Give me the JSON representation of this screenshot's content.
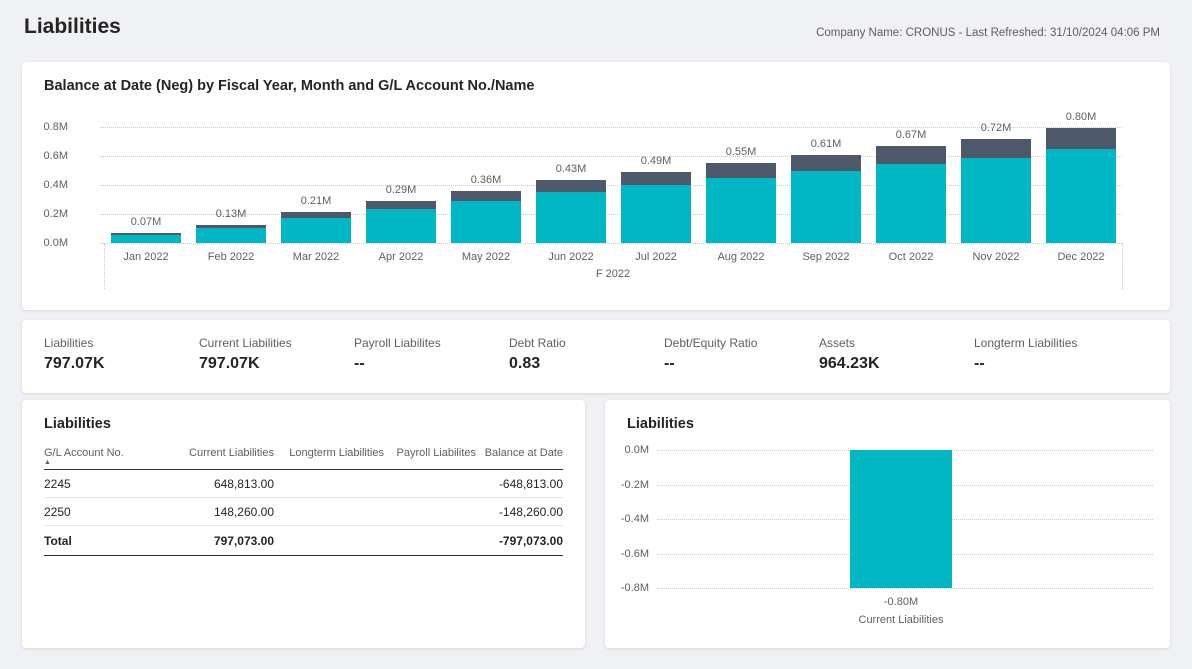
{
  "page": {
    "title": "Liabilities",
    "meta": "Company Name: CRONUS - Last Refreshed: 31/10/2024 04:06 PM"
  },
  "colors": {
    "teal": "#00B7C3",
    "slate": "#4E586B",
    "background": "#eff1f4",
    "grid": "#cccccc",
    "text_muted": "#605E5C",
    "text_dark": "#252423"
  },
  "chart_data": [
    {
      "type": "bar",
      "stacked": true,
      "title": "Balance at Date (Neg) by Fiscal Year, Month and G/L Account No./Name",
      "categories": [
        "Jan 2022",
        "Feb 2022",
        "Mar 2022",
        "Apr 2022",
        "May 2022",
        "Jun 2022",
        "Jul 2022",
        "Aug 2022",
        "Sep 2022",
        "Oct 2022",
        "Nov 2022",
        "Dec 2022"
      ],
      "series": [
        {
          "name": "2245",
          "color": "#00B7C3",
          "values": [
            0.057,
            0.106,
            0.171,
            0.236,
            0.293,
            0.35,
            0.399,
            0.448,
            0.497,
            0.545,
            0.586,
            0.649
          ]
        },
        {
          "name": "2250",
          "color": "#4E586B",
          "values": [
            0.013,
            0.024,
            0.039,
            0.054,
            0.067,
            0.08,
            0.091,
            0.102,
            0.113,
            0.125,
            0.134,
            0.148
          ]
        }
      ],
      "total_labels": [
        "0.07M",
        "0.13M",
        "0.21M",
        "0.29M",
        "0.36M",
        "0.43M",
        "0.49M",
        "0.55M",
        "0.61M",
        "0.67M",
        "0.72M",
        "0.80M"
      ],
      "y_ticks": [
        "0.8M",
        "0.6M",
        "0.4M",
        "0.2M",
        "0.0M"
      ],
      "ylim": [
        0,
        0.8
      ],
      "x_group_label": "F 2022",
      "grid": "dotted",
      "legend": "none"
    },
    {
      "type": "bar",
      "title": "Liabilities",
      "categories": [
        "Current Liabilities"
      ],
      "values": [
        -0.8
      ],
      "value_labels": [
        "-0.80M"
      ],
      "color": "#00B7C3",
      "y_ticks": [
        "0.0M",
        "-0.2M",
        "-0.4M",
        "-0.6M",
        "-0.8M"
      ],
      "ylim": [
        -0.8,
        0
      ],
      "grid": "dotted",
      "legend": "none"
    }
  ],
  "kpis": [
    {
      "label": "Liabilities",
      "value": "797.07K"
    },
    {
      "label": "Current Liabilities",
      "value": "797.07K"
    },
    {
      "label": "Payroll Liabilites",
      "value": "--"
    },
    {
      "label": "Debt Ratio",
      "value": "0.83"
    },
    {
      "label": "Debt/Equity Ratio",
      "value": "--"
    },
    {
      "label": "Assets",
      "value": "964.23K"
    },
    {
      "label": "Longterm Liabilities",
      "value": "--"
    }
  ],
  "table": {
    "title": "Liabilities",
    "columns": [
      "G/L Account No.",
      "Current Liabilities",
      "Longterm Liabilities",
      "Payroll Liabilites",
      "Balance at Date"
    ],
    "sort_icon": "▲",
    "rows": [
      [
        "2245",
        "648,813.00",
        "",
        "",
        "-648,813.00"
      ],
      [
        "2250",
        "148,260.00",
        "",
        "",
        "-148,260.00"
      ]
    ],
    "total": [
      "Total",
      "797,073.00",
      "",
      "",
      "-797,073.00"
    ]
  }
}
